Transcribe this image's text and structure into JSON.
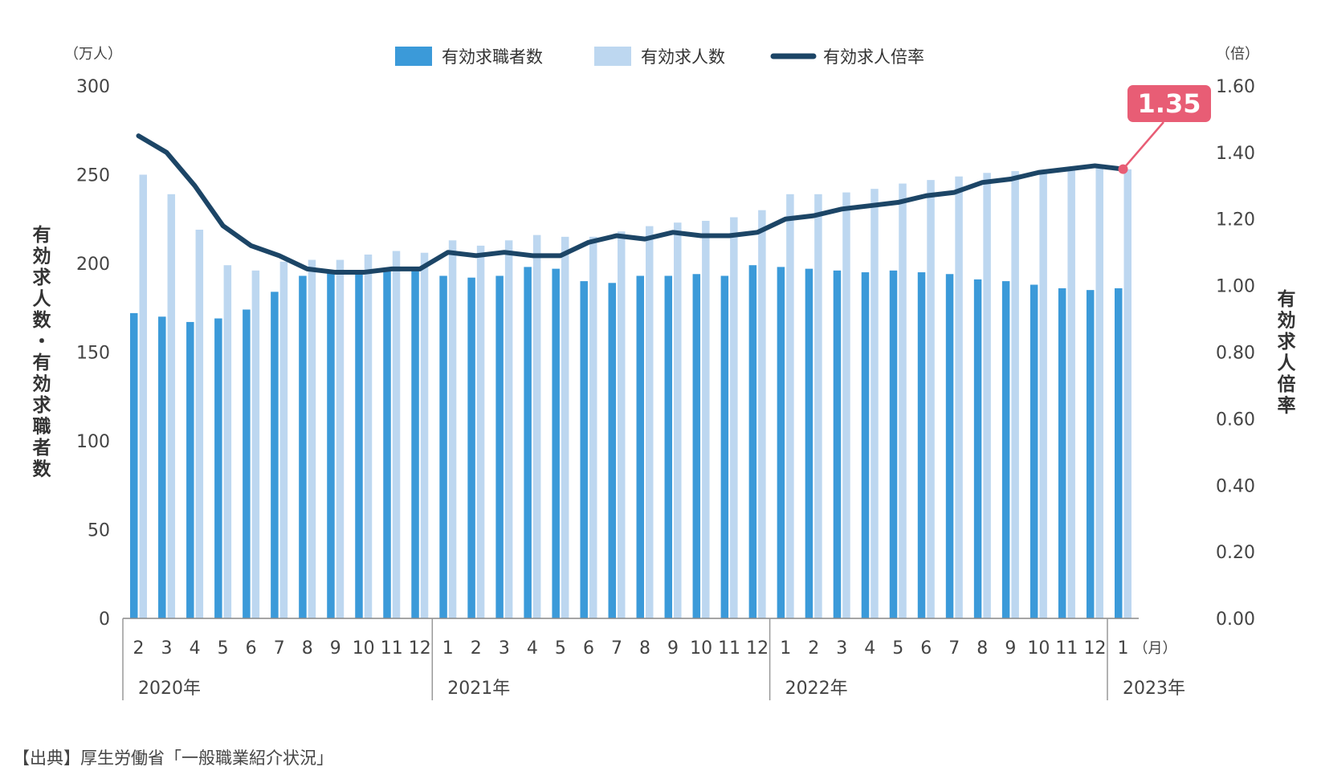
{
  "chart_data": {
    "type": "bar",
    "categories": [
      "2",
      "3",
      "4",
      "5",
      "6",
      "7",
      "8",
      "9",
      "10",
      "11",
      "12",
      "1",
      "2",
      "3",
      "4",
      "5",
      "6",
      "7",
      "8",
      "9",
      "10",
      "11",
      "12",
      "1",
      "2",
      "3",
      "4",
      "5",
      "6",
      "7",
      "8",
      "9",
      "10",
      "11",
      "12",
      "1"
    ],
    "year_groups": [
      {
        "label": "2020年",
        "start": 0,
        "end": 10
      },
      {
        "label": "2021年",
        "start": 11,
        "end": 22
      },
      {
        "label": "2022年",
        "start": 23,
        "end": 34
      },
      {
        "label": "2023年",
        "start": 35,
        "end": 35
      }
    ],
    "month_unit": "（月）",
    "series": [
      {
        "name": "有効求職者数",
        "axis": "left",
        "kind": "bar",
        "color": "#3b9ad9",
        "values": [
          172,
          170,
          167,
          169,
          174,
          184,
          193,
          195,
          196,
          196,
          196,
          193,
          192,
          193,
          198,
          197,
          190,
          189,
          193,
          193,
          194,
          193,
          199,
          198,
          197,
          196,
          195,
          196,
          195,
          194,
          191,
          190,
          188,
          186,
          185,
          186
        ]
      },
      {
        "name": "有効求人数",
        "axis": "left",
        "kind": "bar",
        "color": "#bdd7f0",
        "values": [
          250,
          239,
          219,
          199,
          196,
          201,
          202,
          202,
          205,
          207,
          206,
          213,
          210,
          213,
          216,
          215,
          215,
          218,
          221,
          223,
          224,
          226,
          230,
          239,
          239,
          240,
          242,
          245,
          247,
          249,
          251,
          252,
          252,
          253,
          254,
          253
        ]
      },
      {
        "name": "有効求人倍率",
        "axis": "right",
        "kind": "line",
        "color": "#1c4566",
        "values": [
          1.45,
          1.4,
          1.3,
          1.18,
          1.12,
          1.09,
          1.05,
          1.04,
          1.04,
          1.05,
          1.05,
          1.1,
          1.09,
          1.1,
          1.09,
          1.09,
          1.13,
          1.15,
          1.14,
          1.16,
          1.15,
          1.15,
          1.16,
          1.2,
          1.21,
          1.23,
          1.24,
          1.25,
          1.27,
          1.28,
          1.31,
          1.32,
          1.34,
          1.35,
          1.36,
          1.35
        ]
      }
    ],
    "left_axis": {
      "unit": "（万人）",
      "label": "有効求人数・有効求職者数",
      "ylim": [
        0,
        300
      ],
      "ticks": [
        "0",
        "50",
        "100",
        "150",
        "200",
        "250",
        "300"
      ]
    },
    "right_axis": {
      "unit": "（倍）",
      "label": "有効求人倍率",
      "ylim": [
        0,
        1.6
      ],
      "ticks": [
        "0.00",
        "0.20",
        "0.40",
        "0.60",
        "0.80",
        "1.00",
        "1.20",
        "1.40",
        "1.60"
      ]
    },
    "callout": {
      "text": "1.35",
      "color": "#e85d75"
    },
    "grid": false,
    "legend_position": "top-center"
  },
  "source": "【出典】厚生労働省「一般職業紹介状況」"
}
